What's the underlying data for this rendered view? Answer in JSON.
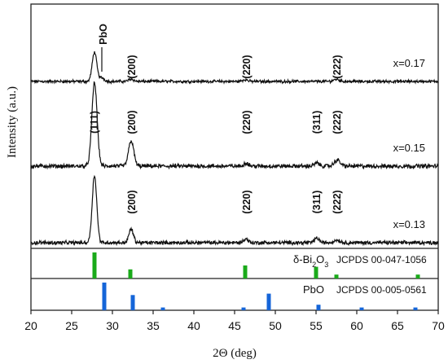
{
  "chart_data": {
    "type": "line",
    "xlabel": "2Θ (deg)",
    "ylabel": "Intensity (a.u.)",
    "xlim": [
      20,
      70
    ],
    "x_ticks": [
      "20",
      "25",
      "30",
      "35",
      "40",
      "45",
      "50",
      "55",
      "60",
      "65",
      "70"
    ],
    "series": [
      {
        "name": "x=0.17",
        "baseline": 0.4,
        "peaks": [
          {
            "x": 27.8,
            "h": 4.8,
            "w": 0.28
          },
          {
            "x": 28.7,
            "h": 0.6,
            "w": 0.3
          },
          {
            "x": 32.3,
            "h": 0.4,
            "w": 0.3
          },
          {
            "x": 46.3,
            "h": 0.3,
            "w": 0.3
          },
          {
            "x": 57.5,
            "h": 0.35,
            "w": 0.35
          }
        ],
        "annotations": [
          {
            "label": "PbO",
            "x": 28.9
          },
          {
            "label": "(200)",
            "x": 32.4
          },
          {
            "label": "(220)",
            "x": 46.5
          },
          {
            "label": "(222)",
            "x": 57.6
          }
        ]
      },
      {
        "name": "x=0.15",
        "baseline": 0.4,
        "peaks": [
          {
            "x": 27.8,
            "h": 8.2,
            "w": 0.32
          },
          {
            "x": 32.3,
            "h": 2.5,
            "w": 0.32
          },
          {
            "x": 46.4,
            "h": 0.3,
            "w": 0.3
          },
          {
            "x": 55.1,
            "h": 0.3,
            "w": 0.3
          },
          {
            "x": 57.6,
            "h": 0.6,
            "w": 0.35
          }
        ],
        "annotations": [
          {
            "label": "(200)",
            "x": 32.4
          },
          {
            "label": "(220)",
            "x": 46.5
          },
          {
            "label": "(311)",
            "x": 55.1
          },
          {
            "label": "(222)",
            "x": 57.6
          }
        ]
      },
      {
        "name": "x=0.13",
        "baseline": 0.35,
        "peaks": [
          {
            "x": 27.8,
            "h": 7.5,
            "w": 0.28
          },
          {
            "x": 32.3,
            "h": 1.5,
            "w": 0.28
          },
          {
            "x": 46.4,
            "h": 0.4,
            "w": 0.3
          },
          {
            "x": 55.1,
            "h": 0.5,
            "w": 0.3
          },
          {
            "x": 57.6,
            "h": 0.3,
            "w": 0.35
          }
        ],
        "annotations": [
          {
            "label": "(111)",
            "x": 27.8
          },
          {
            "label": "(200)",
            "x": 32.4
          },
          {
            "label": "(220)",
            "x": 46.5
          },
          {
            "label": "(311)",
            "x": 55.1
          },
          {
            "label": "(222)",
            "x": 57.6
          }
        ]
      }
    ],
    "references": [
      {
        "label_html": "δ-Bi<tspan baseline-shift='sub' font-size='8'>2</tspan>O<tspan baseline-shift='sub' font-size='8'>3</tspan>",
        "label_parts": [
          "δ-Bi",
          "2",
          "O",
          "3"
        ],
        "card": "JCPDS 00-047-1056",
        "color": "#1aaa1a",
        "lines": [
          {
            "x": 27.8,
            "rel": 1.0
          },
          {
            "x": 32.2,
            "rel": 0.35
          },
          {
            "x": 46.3,
            "rel": 0.5
          },
          {
            "x": 55.0,
            "rel": 0.45
          },
          {
            "x": 57.5,
            "rel": 0.15
          },
          {
            "x": 67.5,
            "rel": 0.15
          }
        ]
      },
      {
        "label": "PbO",
        "card": "JCPDS 00-005-0561",
        "color": "#1565d8",
        "lines": [
          {
            "x": 29.0,
            "rel": 1.0
          },
          {
            "x": 32.5,
            "rel": 0.55
          },
          {
            "x": 36.2,
            "rel": 0.1
          },
          {
            "x": 46.1,
            "rel": 0.1
          },
          {
            "x": 49.2,
            "rel": 0.6
          },
          {
            "x": 55.3,
            "rel": 0.2
          },
          {
            "x": 60.6,
            "rel": 0.1
          },
          {
            "x": 67.2,
            "rel": 0.1
          }
        ]
      }
    ]
  }
}
